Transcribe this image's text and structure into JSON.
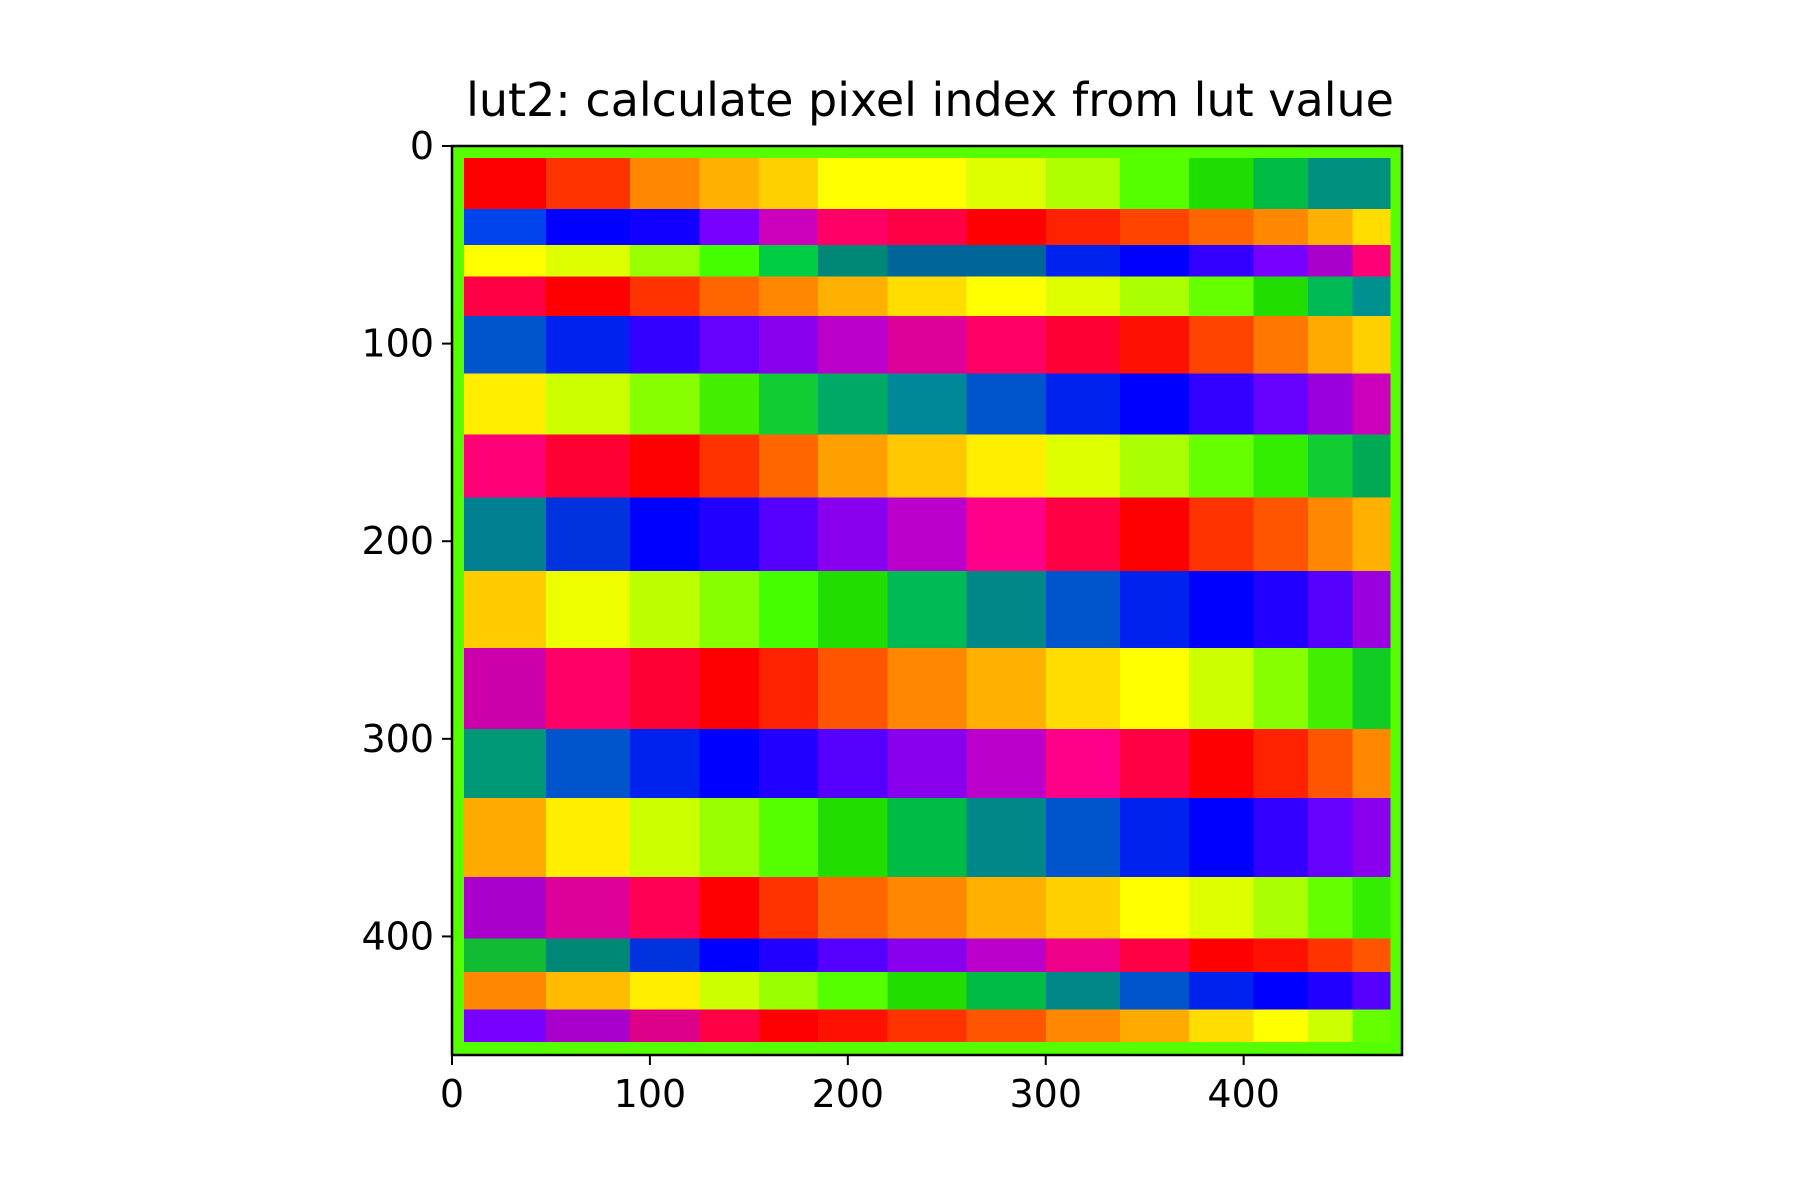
{
  "chart_data": {
    "type": "heatmap",
    "title": "lut2: calculate pixel index from lut value",
    "xlabel": "",
    "ylabel": "",
    "xlim": [
      0,
      480
    ],
    "ylim": [
      460,
      0
    ],
    "x_ticks": [
      0,
      100,
      200,
      300,
      400
    ],
    "y_ticks": [
      0,
      100,
      200,
      300,
      400
    ],
    "grid": false,
    "colormap": "hsv (periodic, banded)",
    "background_color": "#55ff00",
    "image_extent": {
      "x": [
        6,
        474
      ],
      "y": [
        6,
        453
      ]
    },
    "row_band_edges_y": [
      6,
      32,
      50,
      66,
      86,
      115,
      146,
      178,
      215,
      254,
      295,
      330,
      370,
      401,
      418,
      437,
      453
    ],
    "row_band_centers_y": [
      19,
      41,
      58,
      76,
      100,
      130,
      162,
      196,
      234,
      274,
      312,
      350,
      385,
      409,
      427,
      445
    ],
    "column_centers_x": [
      25,
      70,
      110,
      140,
      170,
      200,
      240,
      280,
      320,
      355,
      390,
      420,
      445,
      465
    ],
    "row_color_sequences": [
      [
        "#ff0000",
        "#ff3300",
        "#ff8800",
        "#ffb000",
        "#ffd000",
        "#ffff00",
        "#ffff00",
        "#ddff00",
        "#b0ff00",
        "#55ff00",
        "#20dd00",
        "#00bb44",
        "#009080",
        "#009080"
      ],
      [
        "#0044ee",
        "#0000ff",
        "#1100ff",
        "#7700ff",
        "#cc00bb",
        "#ff0066",
        "#ff0044",
        "#ff0000",
        "#ff2200",
        "#ff4400",
        "#ff6600",
        "#ff8800",
        "#ffb000",
        "#ffdd00"
      ],
      [
        "#ffff00",
        "#ddff00",
        "#99ff00",
        "#44ff00",
        "#00cc44",
        "#008877",
        "#006699",
        "#006699",
        "#0022ee",
        "#0000ff",
        "#3300ff",
        "#7700ff",
        "#aa00cc",
        "#ff0077"
      ],
      [
        "#ff0044",
        "#ff0000",
        "#ff3300",
        "#ff6600",
        "#ff8800",
        "#ffb000",
        "#ffdd00",
        "#ffff00",
        "#ddff00",
        "#aaff00",
        "#66ff00",
        "#22dd00",
        "#00bb55",
        "#009090"
      ],
      [
        "#0055cc",
        "#0022ee",
        "#3300ff",
        "#6600ff",
        "#8800ee",
        "#bb00cc",
        "#dd0099",
        "#ff0066",
        "#ff0033",
        "#ff1100",
        "#ff4400",
        "#ff7700",
        "#ffaa00",
        "#ffd000"
      ],
      [
        "#ffee00",
        "#ccff00",
        "#88ff00",
        "#44ee00",
        "#11cc33",
        "#00aa66",
        "#008899",
        "#0055cc",
        "#0022ee",
        "#0000ff",
        "#3300ff",
        "#6600ff",
        "#9900dd",
        "#cc00bb"
      ],
      [
        "#ff0077",
        "#ff0033",
        "#ff0000",
        "#ff3300",
        "#ff6600",
        "#ffa000",
        "#ffc800",
        "#ffee00",
        "#ddff00",
        "#aaff00",
        "#66ff00",
        "#33ee00",
        "#11cc33",
        "#00aa55"
      ],
      [
        "#008090",
        "#0033dd",
        "#0000ff",
        "#2200ff",
        "#5500ff",
        "#8800ee",
        "#bb00cc",
        "#ff0088",
        "#ff0044",
        "#ff0000",
        "#ff3300",
        "#ff5500",
        "#ff8800",
        "#ffb000"
      ],
      [
        "#ffcc00",
        "#eeff00",
        "#bbff00",
        "#88ff00",
        "#44ff00",
        "#22dd00",
        "#00bb55",
        "#008888",
        "#0055cc",
        "#0022ee",
        "#0000ff",
        "#2200ff",
        "#5500ff",
        "#9900dd"
      ],
      [
        "#cc00aa",
        "#ff0066",
        "#ff0033",
        "#ff0000",
        "#ff2200",
        "#ff5500",
        "#ff8800",
        "#ffb000",
        "#ffdd00",
        "#ffff00",
        "#ccff00",
        "#88ff00",
        "#44ee00",
        "#11cc22"
      ],
      [
        "#009977",
        "#0055cc",
        "#0022ee",
        "#0000ff",
        "#2200ff",
        "#5500ff",
        "#8800ee",
        "#bb00cc",
        "#ff0088",
        "#ff0044",
        "#ff0000",
        "#ff2200",
        "#ff5500",
        "#ff8800"
      ],
      [
        "#ffaa00",
        "#ffee00",
        "#ccff00",
        "#99ff00",
        "#55ff00",
        "#22dd00",
        "#00bb44",
        "#008888",
        "#0055cc",
        "#0022ee",
        "#0000ff",
        "#3300ff",
        "#6600ff",
        "#8800ee"
      ],
      [
        "#aa00cc",
        "#dd0099",
        "#ff0055",
        "#ff0000",
        "#ff3300",
        "#ff6600",
        "#ff8800",
        "#ffb000",
        "#ffd000",
        "#ffff00",
        "#ddff00",
        "#aaff00",
        "#66ff00",
        "#33ee00"
      ],
      [
        "#11bb33",
        "#008877",
        "#0033dd",
        "#0000ff",
        "#2200ff",
        "#5500ff",
        "#8800ee",
        "#bb00cc",
        "#ee0088",
        "#ff0044",
        "#ff0000",
        "#ff1100",
        "#ff3300",
        "#ff5500"
      ],
      [
        "#ff8800",
        "#ffbb00",
        "#ffee00",
        "#ccff00",
        "#99ff00",
        "#55ff00",
        "#22dd00",
        "#00bb44",
        "#008888",
        "#0055cc",
        "#0022ee",
        "#0000ff",
        "#2200ff",
        "#5500ff"
      ],
      [
        "#7700ff",
        "#aa00cc",
        "#dd0088",
        "#ff0044",
        "#ff0000",
        "#ff1100",
        "#ff3300",
        "#ff5500",
        "#ff8800",
        "#ffaa00",
        "#ffdd00",
        "#ffff00",
        "#ccff00",
        "#66ff00"
      ]
    ]
  }
}
